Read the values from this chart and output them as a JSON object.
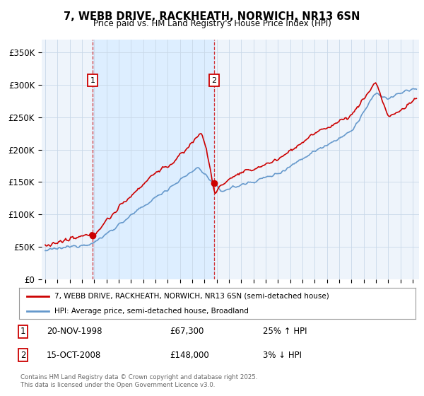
{
  "title1": "7, WEBB DRIVE, RACKHEATH, NORWICH, NR13 6SN",
  "title2": "Price paid vs. HM Land Registry's House Price Index (HPI)",
  "ylim": [
    0,
    370000
  ],
  "yticks": [
    0,
    50000,
    100000,
    150000,
    200000,
    250000,
    300000,
    350000
  ],
  "ytick_labels": [
    "£0",
    "£50K",
    "£100K",
    "£150K",
    "£200K",
    "£250K",
    "£300K",
    "£350K"
  ],
  "red_color": "#cc0000",
  "blue_color": "#6699cc",
  "shade_color": "#ddeeff",
  "marker1_x": 1998.88,
  "marker1_y": 67300,
  "marker2_x": 2008.79,
  "marker2_y": 148000,
  "legend_line1": "7, WEBB DRIVE, RACKHEATH, NORWICH, NR13 6SN (semi-detached house)",
  "legend_line2": "HPI: Average price, semi-detached house, Broadland",
  "marker1_date": "20-NOV-1998",
  "marker1_price": "£67,300",
  "marker1_hpi": "25% ↑ HPI",
  "marker2_date": "15-OCT-2008",
  "marker2_price": "£148,000",
  "marker2_hpi": "3% ↓ HPI",
  "footer": "Contains HM Land Registry data © Crown copyright and database right 2025.\nThis data is licensed under the Open Government Licence v3.0.",
  "xlim_left": 1994.7,
  "xlim_right": 2025.5
}
